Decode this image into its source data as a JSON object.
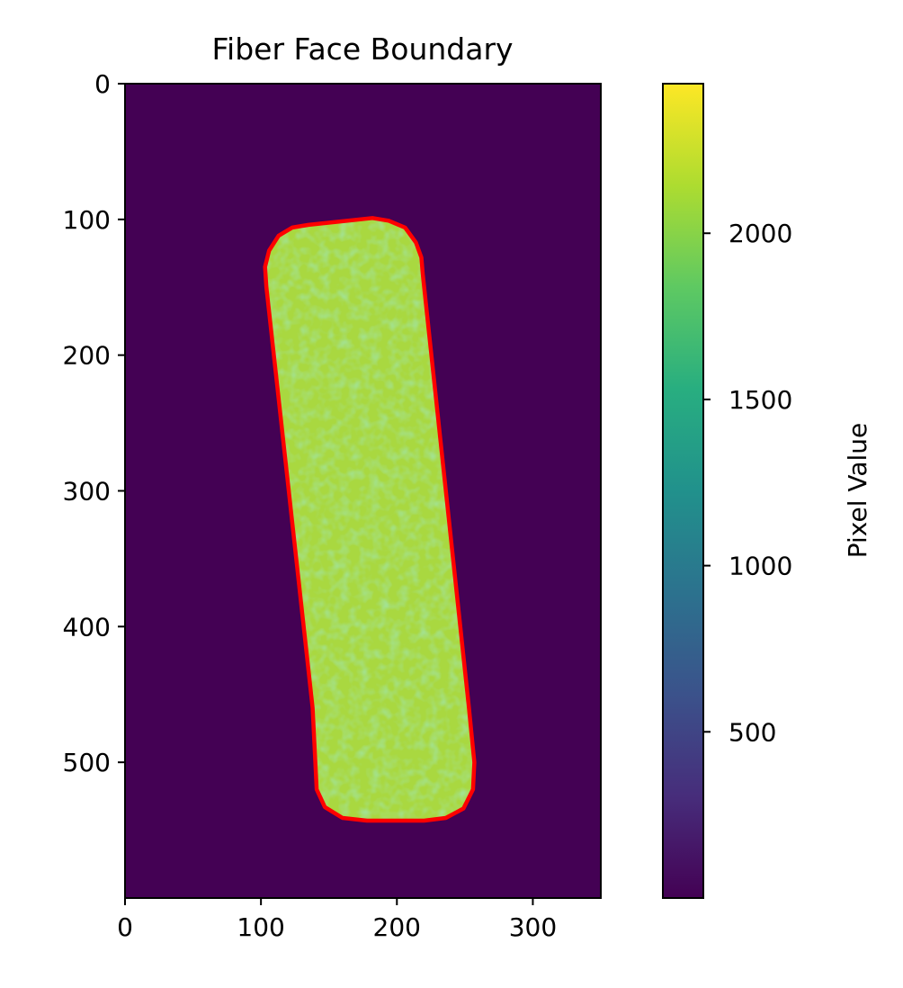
{
  "chart_data": {
    "type": "heatmap",
    "title": "Fiber Face Boundary",
    "xlim": [
      0,
      350
    ],
    "ylim": [
      600,
      0
    ],
    "x_ticks": [
      0,
      100,
      200,
      300
    ],
    "y_ticks": [
      0,
      100,
      200,
      300,
      400,
      500
    ],
    "x_tick_labels": [
      "0",
      "100",
      "200",
      "300"
    ],
    "y_tick_labels": [
      "0",
      "100",
      "200",
      "300",
      "400",
      "500"
    ],
    "colormap": "viridis",
    "background_value": 0,
    "fiber_mean_value": 1950,
    "colorbar": {
      "label": "Pixel Value",
      "range": [
        0,
        2450
      ],
      "ticks": [
        500,
        1000,
        1500,
        2000
      ],
      "tick_labels": [
        "500",
        "1000",
        "1500",
        "2000"
      ]
    },
    "boundary": {
      "color": "#ff0000",
      "points": [
        [
          135,
          104
        ],
        [
          182,
          99
        ],
        [
          194,
          101
        ],
        [
          206,
          106
        ],
        [
          214,
          117
        ],
        [
          218,
          128
        ],
        [
          219,
          140
        ],
        [
          253,
          460
        ],
        [
          255,
          480
        ],
        [
          257,
          500
        ],
        [
          256,
          520
        ],
        [
          249,
          534
        ],
        [
          236,
          541
        ],
        [
          220,
          543
        ],
        [
          178,
          543
        ],
        [
          160,
          541
        ],
        [
          147,
          533
        ],
        [
          141,
          520
        ],
        [
          140,
          500
        ],
        [
          139,
          480
        ],
        [
          138,
          460
        ],
        [
          104,
          150
        ],
        [
          103,
          135
        ],
        [
          106,
          123
        ],
        [
          113,
          112
        ],
        [
          123,
          106
        ]
      ]
    }
  }
}
